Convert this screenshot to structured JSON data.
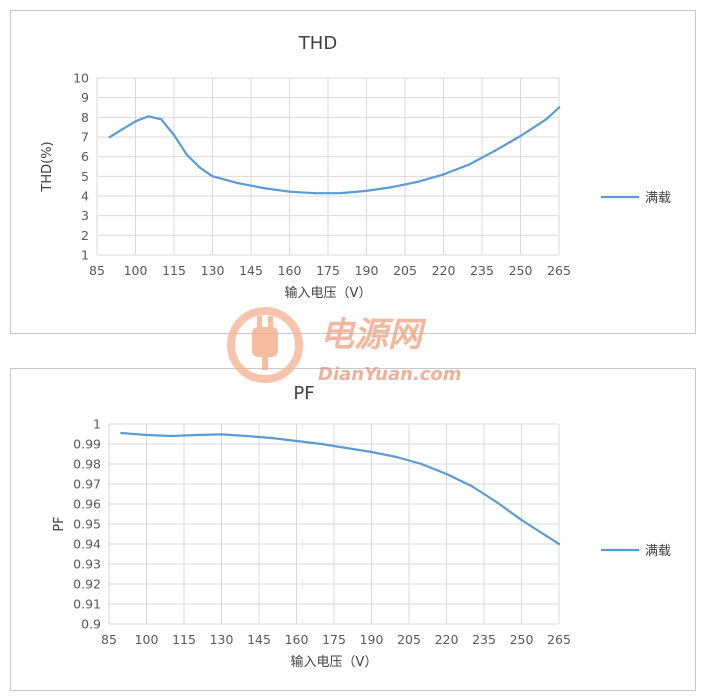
{
  "chart_data": [
    {
      "type": "line",
      "title": "THD",
      "xlabel": "输入电压（V）",
      "ylabel": "THD(%)",
      "xlim": [
        85,
        265
      ],
      "ylim": [
        1,
        10
      ],
      "x_ticks": [
        "85",
        "100",
        "115",
        "130",
        "145",
        "160",
        "175",
        "190",
        "205",
        "220",
        "235",
        "250",
        "265"
      ],
      "y_ticks": [
        "1",
        "2",
        "3",
        "4",
        "5",
        "6",
        "7",
        "8",
        "9",
        "10"
      ],
      "grid": true,
      "legend_position": "right",
      "series": [
        {
          "name": "满载",
          "color": "#5b9bd5",
          "x": [
            90,
            95,
            100,
            105,
            110,
            115,
            120,
            125,
            130,
            140,
            150,
            160,
            170,
            180,
            190,
            200,
            210,
            220,
            230,
            240,
            250,
            260,
            265
          ],
          "y": [
            7.0,
            7.4,
            7.8,
            8.05,
            7.9,
            7.1,
            6.1,
            5.45,
            5.0,
            4.65,
            4.4,
            4.22,
            4.14,
            4.15,
            4.26,
            4.45,
            4.72,
            5.1,
            5.6,
            6.3,
            7.05,
            7.9,
            8.5
          ]
        }
      ]
    },
    {
      "type": "line",
      "title": "PF",
      "xlabel": "输入电压（V）",
      "ylabel": "PF",
      "xlim": [
        85,
        265
      ],
      "ylim": [
        0.9,
        1
      ],
      "x_ticks": [
        "85",
        "100",
        "115",
        "130",
        "145",
        "160",
        "175",
        "190",
        "205",
        "220",
        "235",
        "250",
        "265"
      ],
      "y_ticks": [
        "0.9",
        "0.91",
        "0.92",
        "0.93",
        "0.94",
        "0.95",
        "0.96",
        "0.97",
        "0.98",
        "0.99",
        "1"
      ],
      "grid": true,
      "legend_position": "right",
      "series": [
        {
          "name": "满载",
          "color": "#5b9bd5",
          "x": [
            90,
            100,
            110,
            120,
            130,
            140,
            150,
            160,
            170,
            180,
            190,
            200,
            210,
            220,
            230,
            240,
            250,
            260,
            265
          ],
          "y": [
            0.9955,
            0.9945,
            0.994,
            0.9945,
            0.9948,
            0.994,
            0.993,
            0.9915,
            0.99,
            0.988,
            0.986,
            0.9835,
            0.98,
            0.975,
            0.969,
            0.961,
            0.952,
            0.944,
            0.94
          ]
        }
      ]
    }
  ],
  "watermark": {
    "cn": "电源网",
    "en": "DianYuan.com",
    "color": "#f0a080"
  }
}
